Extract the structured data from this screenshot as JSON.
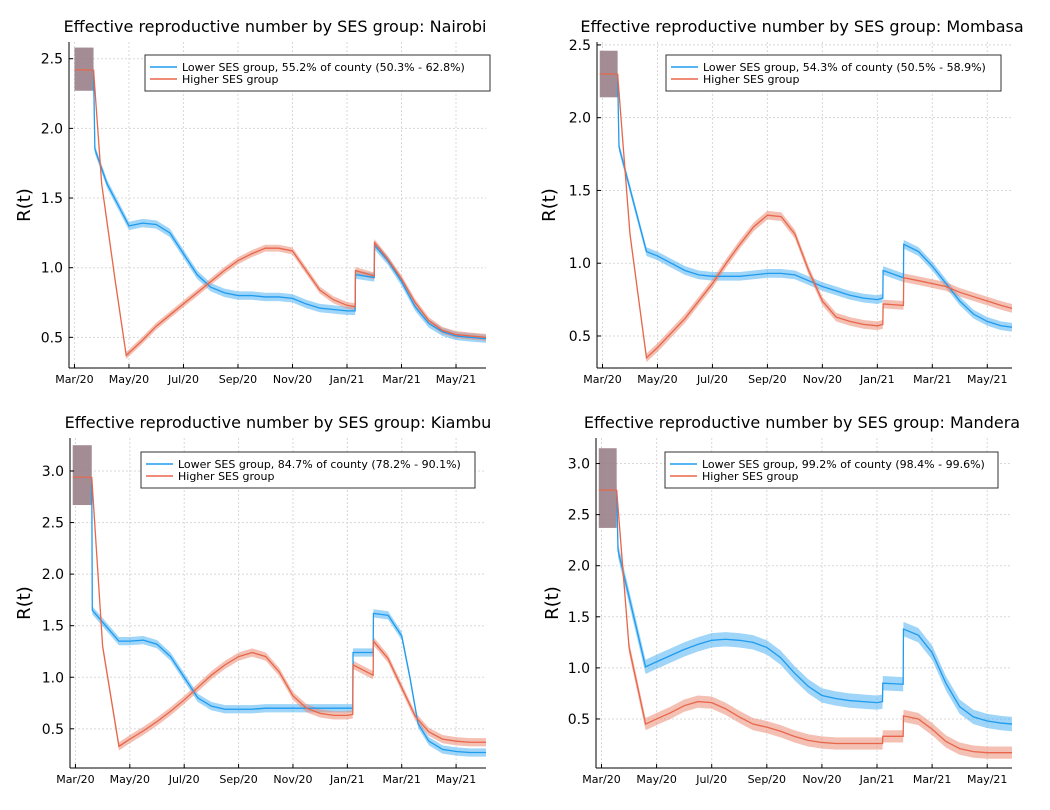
{
  "figure": {
    "ylabel": "R(t)"
  },
  "colors": {
    "lower": "#1f9bef",
    "higher": "#e8664a",
    "lower_band": "#4fb3f2",
    "higher_band": "#eb8c74",
    "overlap_band": "#9a8088"
  },
  "chart_data": [
    {
      "type": "line",
      "title": "Effective reproductive number by SES group: Nairobi",
      "xlabel": "",
      "ylabel": "R(t)",
      "x_ticks": [
        "Mar/20",
        "May/20",
        "Jul/20",
        "Sep/20",
        "Nov/20",
        "Jan/21",
        "Mar/21",
        "May/21"
      ],
      "x_unit": "months since Mar/20",
      "xlim": [
        -0.2,
        15.1
      ],
      "y_ticks": [
        0.5,
        1.0,
        1.5,
        2.0,
        2.5
      ],
      "ylim": [
        0.28,
        2.62
      ],
      "legend": [
        "Lower SES group, 55.2% of county (50.3% - 62.8%)",
        "Higher SES group"
      ],
      "legend_position": "top-right",
      "initial_band": {
        "x": [
          0,
          0.7
        ],
        "mean": 2.42,
        "low": 2.27,
        "high": 2.58
      },
      "series": [
        {
          "name": "Lower SES group",
          "x": [
            0.7,
            0.75,
            1.2,
            1.6,
            2.0,
            2.5,
            3.0,
            3.5,
            4.0,
            4.5,
            5.0,
            5.5,
            6.0,
            6.5,
            7.0,
            7.5,
            8.0,
            8.5,
            9.0,
            9.5,
            10.0,
            10.3,
            10.31,
            11.0,
            11.01,
            11.5,
            12.0,
            12.5,
            13.0,
            13.5,
            14.0,
            14.5,
            15.1
          ],
          "values": [
            2.42,
            1.85,
            1.6,
            1.45,
            1.3,
            1.32,
            1.31,
            1.25,
            1.1,
            0.95,
            0.86,
            0.82,
            0.8,
            0.8,
            0.79,
            0.79,
            0.78,
            0.74,
            0.71,
            0.7,
            0.69,
            0.69,
            0.95,
            0.93,
            1.16,
            1.05,
            0.9,
            0.72,
            0.6,
            0.54,
            0.51,
            0.5,
            0.49
          ],
          "half_width": 0.03
        },
        {
          "name": "Higher SES group",
          "x": [
            0.7,
            1.0,
            1.5,
            1.9,
            2.5,
            3.0,
            3.5,
            4.0,
            4.5,
            5.0,
            5.5,
            6.0,
            6.5,
            7.0,
            7.5,
            8.0,
            8.5,
            9.0,
            9.5,
            10.0,
            10.3,
            10.31,
            11.0,
            11.01,
            11.5,
            12.0,
            12.5,
            13.0,
            13.5,
            14.0,
            14.5,
            15.1
          ],
          "values": [
            2.42,
            1.6,
            0.9,
            0.37,
            0.48,
            0.58,
            0.66,
            0.74,
            0.82,
            0.9,
            0.98,
            1.05,
            1.1,
            1.14,
            1.14,
            1.12,
            0.98,
            0.84,
            0.77,
            0.73,
            0.72,
            0.98,
            0.94,
            1.18,
            1.06,
            0.92,
            0.75,
            0.62,
            0.55,
            0.52,
            0.51,
            0.5
          ],
          "half_width": 0.025
        }
      ]
    },
    {
      "type": "line",
      "title": "Effective reproductive number by SES group: Mombasa",
      "xlabel": "",
      "ylabel": "R(t)",
      "x_ticks": [
        "Mar/20",
        "May/20",
        "Jul/20",
        "Sep/20",
        "Nov/20",
        "Jan/21",
        "Mar/21",
        "May/21"
      ],
      "x_unit": "months since Mar/20",
      "xlim": [
        -0.2,
        14.9
      ],
      "y_ticks": [
        0.5,
        1.0,
        1.5,
        2.0,
        2.5
      ],
      "ylim": [
        0.28,
        2.52
      ],
      "legend": [
        "Lower SES group, 54.3% of county (50.5% - 58.9%)",
        "Higher SES group"
      ],
      "legend_position": "top-right",
      "initial_band": {
        "x": [
          -0.1,
          0.55
        ],
        "mean": 2.3,
        "low": 2.14,
        "high": 2.46
      },
      "series": [
        {
          "name": "Lower SES group",
          "x": [
            0.55,
            0.6,
            1.6,
            2.0,
            2.5,
            3.0,
            3.5,
            4.0,
            4.5,
            5.0,
            5.5,
            6.0,
            6.5,
            7.0,
            7.5,
            8.0,
            8.5,
            9.0,
            9.5,
            10.0,
            10.2,
            10.21,
            10.95,
            10.96,
            11.5,
            12.0,
            12.5,
            13.0,
            13.5,
            14.0,
            14.5,
            14.9
          ],
          "values": [
            2.3,
            1.8,
            1.08,
            1.05,
            1.0,
            0.95,
            0.92,
            0.91,
            0.91,
            0.91,
            0.92,
            0.93,
            0.93,
            0.92,
            0.88,
            0.84,
            0.81,
            0.78,
            0.76,
            0.75,
            0.76,
            0.95,
            0.9,
            1.13,
            1.08,
            0.98,
            0.86,
            0.74,
            0.65,
            0.6,
            0.57,
            0.56
          ],
          "half_width": 0.03
        },
        {
          "name": "Higher SES group",
          "x": [
            0.55,
            1.0,
            1.6,
            2.0,
            2.5,
            3.0,
            3.5,
            4.0,
            4.5,
            5.0,
            5.5,
            6.0,
            6.5,
            7.0,
            7.5,
            8.0,
            8.5,
            9.0,
            9.5,
            10.0,
            10.2,
            10.21,
            10.95,
            10.96,
            11.5,
            12.0,
            12.5,
            13.0,
            13.5,
            14.0,
            14.5,
            14.9
          ],
          "values": [
            2.3,
            1.2,
            0.35,
            0.42,
            0.52,
            0.62,
            0.74,
            0.86,
            1.0,
            1.13,
            1.25,
            1.33,
            1.32,
            1.2,
            0.95,
            0.74,
            0.63,
            0.6,
            0.58,
            0.57,
            0.58,
            0.72,
            0.71,
            0.9,
            0.88,
            0.86,
            0.84,
            0.8,
            0.77,
            0.74,
            0.71,
            0.69
          ],
          "half_width": 0.03
        }
      ]
    },
    {
      "type": "line",
      "title": "Effective reproductive number by SES group: Kiambu",
      "xlabel": "",
      "ylabel": "R(t)",
      "x_ticks": [
        "Mar/20",
        "May/20",
        "Jul/20",
        "Sep/20",
        "Nov/20",
        "Jan/21",
        "Mar/21",
        "May/21"
      ],
      "x_unit": "months since Mar/20",
      "xlim": [
        -0.2,
        15.1
      ],
      "y_ticks": [
        0.5,
        1.0,
        1.5,
        2.0,
        2.5,
        3.0
      ],
      "ylim": [
        0.12,
        3.32
      ],
      "legend": [
        "Lower SES group, 84.7% of county (78.2% - 90.1%)",
        "Higher SES group"
      ],
      "legend_position": "top-right",
      "initial_band": {
        "x": [
          -0.1,
          0.6
        ],
        "mean": 2.94,
        "low": 2.67,
        "high": 3.25
      },
      "series": [
        {
          "name": "Lower SES group",
          "x": [
            0.6,
            0.62,
            1.6,
            2.0,
            2.5,
            3.0,
            3.5,
            4.0,
            4.5,
            5.0,
            5.5,
            6.0,
            6.5,
            7.0,
            7.5,
            8.0,
            8.5,
            9.0,
            9.5,
            10.0,
            10.2,
            10.21,
            10.95,
            10.96,
            11.5,
            12.0,
            12.3,
            12.6,
            13.0,
            13.5,
            14.0,
            14.5,
            15.1
          ],
          "values": [
            2.94,
            1.65,
            1.35,
            1.35,
            1.36,
            1.32,
            1.2,
            1.0,
            0.8,
            0.72,
            0.69,
            0.69,
            0.69,
            0.7,
            0.7,
            0.7,
            0.7,
            0.7,
            0.7,
            0.7,
            0.7,
            1.24,
            1.24,
            1.62,
            1.6,
            1.4,
            1.0,
            0.55,
            0.38,
            0.3,
            0.28,
            0.27,
            0.27
          ],
          "half_width": 0.04
        },
        {
          "name": "Higher SES group",
          "x": [
            0.6,
            1.0,
            1.6,
            2.0,
            2.5,
            3.0,
            3.5,
            4.0,
            4.5,
            5.0,
            5.5,
            6.0,
            6.5,
            7.0,
            7.5,
            8.0,
            8.5,
            9.0,
            9.5,
            10.0,
            10.2,
            10.21,
            10.95,
            10.96,
            11.5,
            12.0,
            12.5,
            13.0,
            13.5,
            14.0,
            14.5,
            15.1
          ],
          "values": [
            2.94,
            1.3,
            0.33,
            0.4,
            0.48,
            0.57,
            0.67,
            0.78,
            0.9,
            1.02,
            1.12,
            1.2,
            1.24,
            1.2,
            1.05,
            0.82,
            0.7,
            0.65,
            0.63,
            0.63,
            0.64,
            1.12,
            1.02,
            1.35,
            1.18,
            0.9,
            0.62,
            0.47,
            0.4,
            0.38,
            0.37,
            0.37
          ],
          "half_width": 0.04
        }
      ]
    },
    {
      "type": "line",
      "title": "Effective reproductive number by SES group: Mandera",
      "xlabel": "",
      "ylabel": "R(t)",
      "x_ticks": [
        "Mar/20",
        "May/20",
        "Jul/20",
        "Sep/20",
        "Nov/20",
        "Jan/21",
        "Mar/21",
        "May/21"
      ],
      "x_unit": "months since Mar/20",
      "xlim": [
        -0.2,
        14.9
      ],
      "y_ticks": [
        0.5,
        1.0,
        1.5,
        2.0,
        2.5,
        3.0
      ],
      "ylim": [
        0.02,
        3.25
      ],
      "legend": [
        "Lower SES group, 99.2% of county (98.4% - 99.6%)",
        "Higher SES group"
      ],
      "legend_position": "top-right",
      "initial_band": {
        "x": [
          -0.1,
          0.55
        ],
        "mean": 2.74,
        "low": 2.37,
        "high": 3.15
      },
      "series": [
        {
          "name": "Lower SES group",
          "x": [
            0.55,
            0.6,
            1.6,
            2.0,
            2.5,
            3.0,
            3.5,
            4.0,
            4.5,
            5.0,
            5.5,
            6.0,
            6.5,
            7.0,
            7.5,
            8.0,
            8.5,
            9.0,
            9.5,
            10.0,
            10.2,
            10.21,
            10.95,
            10.96,
            11.5,
            12.0,
            12.5,
            13.0,
            13.5,
            14.0,
            14.5,
            14.9
          ],
          "values": [
            2.74,
            2.15,
            1.01,
            1.06,
            1.12,
            1.18,
            1.23,
            1.27,
            1.28,
            1.27,
            1.25,
            1.2,
            1.1,
            0.95,
            0.82,
            0.73,
            0.7,
            0.68,
            0.67,
            0.66,
            0.67,
            0.85,
            0.84,
            1.38,
            1.32,
            1.15,
            0.85,
            0.62,
            0.52,
            0.48,
            0.46,
            0.45
          ],
          "half_width": 0.07
        },
        {
          "name": "Higher SES group",
          "x": [
            0.55,
            1.0,
            1.6,
            2.0,
            2.5,
            3.0,
            3.5,
            4.0,
            4.5,
            5.0,
            5.5,
            6.0,
            6.5,
            7.0,
            7.5,
            8.0,
            8.5,
            9.0,
            9.5,
            10.0,
            10.2,
            10.21,
            10.95,
            10.96,
            11.5,
            12.0,
            12.5,
            13.0,
            13.5,
            14.0,
            14.5,
            14.9
          ],
          "values": [
            2.74,
            1.2,
            0.45,
            0.5,
            0.56,
            0.63,
            0.67,
            0.66,
            0.6,
            0.52,
            0.45,
            0.42,
            0.38,
            0.33,
            0.29,
            0.27,
            0.26,
            0.26,
            0.26,
            0.26,
            0.26,
            0.33,
            0.33,
            0.53,
            0.5,
            0.4,
            0.28,
            0.21,
            0.18,
            0.17,
            0.17,
            0.17
          ],
          "half_width": 0.06
        }
      ]
    }
  ]
}
